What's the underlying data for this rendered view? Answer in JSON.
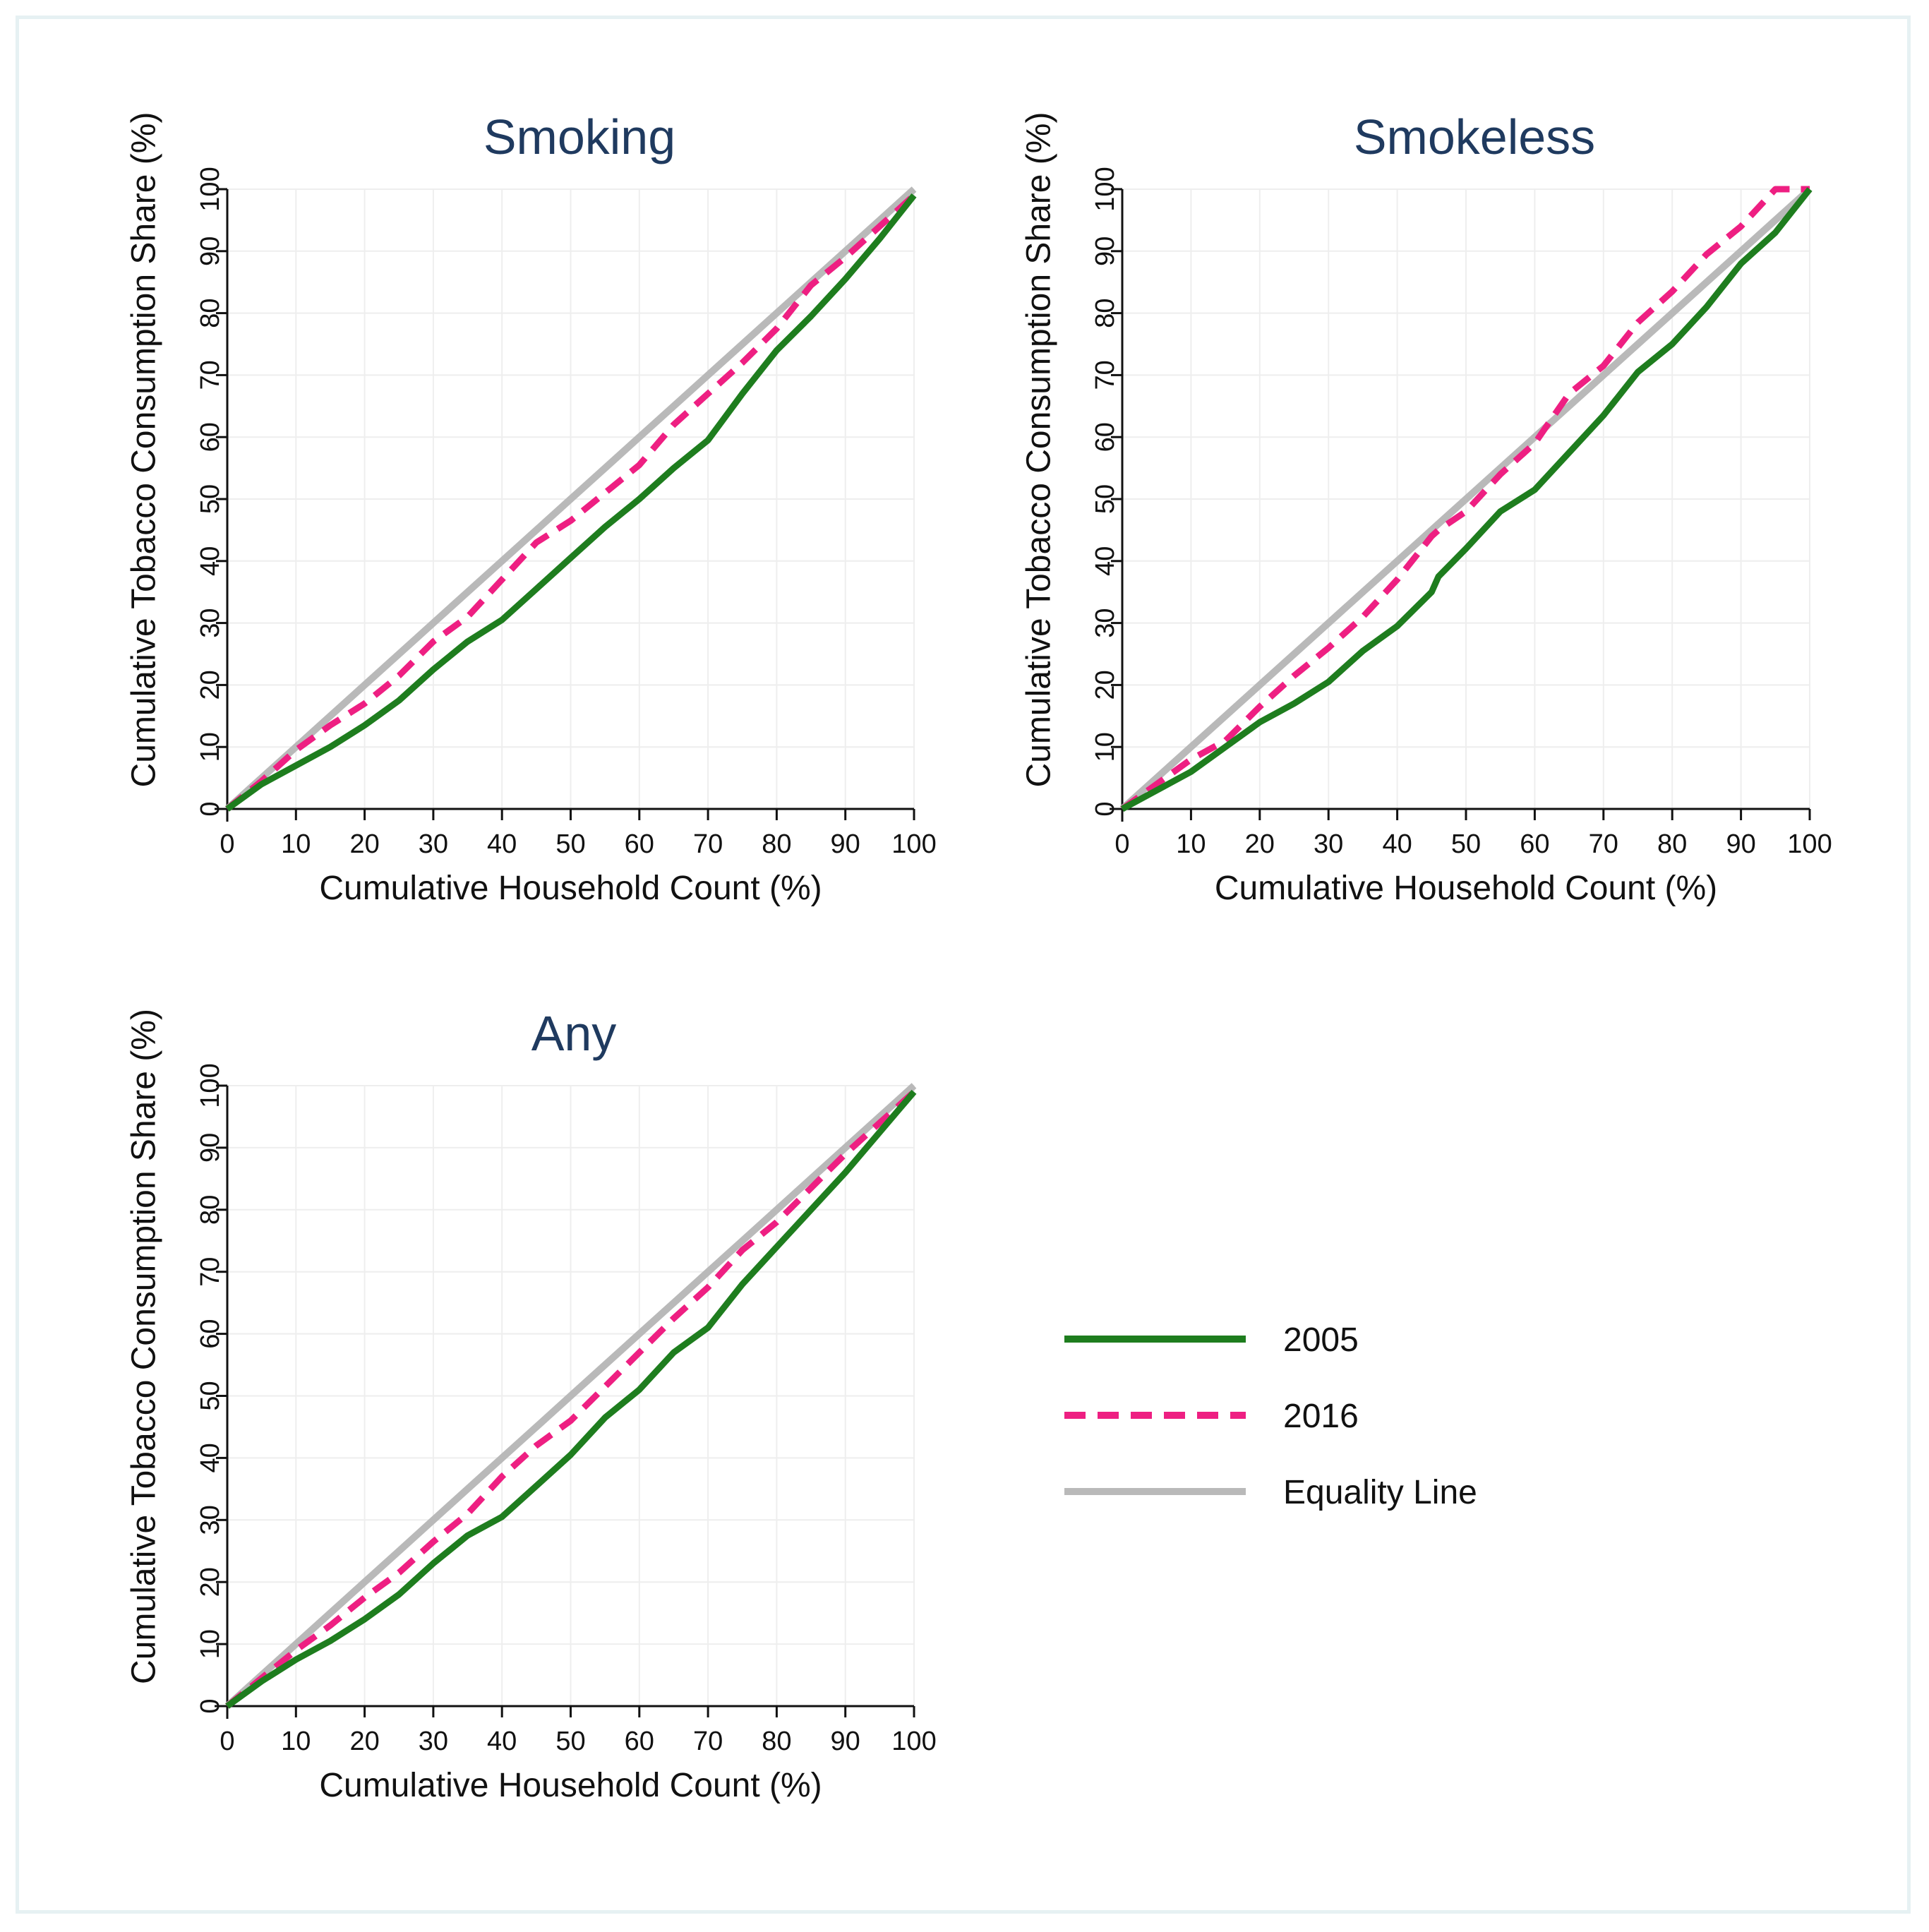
{
  "chart_data": [
    {
      "type": "line",
      "title": "Smoking",
      "xlabel": "Cumulative Household Count (%)",
      "ylabel": "Cumulative Tobacco Consumption Share (%)",
      "xlim": [
        0,
        100
      ],
      "ylim": [
        0,
        100
      ],
      "xticks": [
        0,
        10,
        20,
        30,
        40,
        50,
        60,
        70,
        80,
        90,
        100
      ],
      "yticks": [
        0,
        10,
        20,
        30,
        40,
        50,
        60,
        70,
        80,
        90,
        100
      ],
      "x": [
        0,
        5,
        10,
        15,
        20,
        25,
        30,
        35,
        40,
        45,
        50,
        55,
        60,
        65,
        70,
        75,
        80,
        85,
        90,
        95,
        100
      ],
      "series": [
        {
          "name": "2005",
          "values": [
            0,
            4,
            7,
            10,
            13.5,
            17.5,
            22.5,
            27,
            30.5,
            35.5,
            40.5,
            45.5,
            50,
            55,
            59.5,
            67,
            74,
            79.5,
            85.5,
            92,
            99
          ]
        },
        {
          "name": "2016",
          "values": [
            0,
            4.5,
            9.5,
            13.5,
            17,
            21.5,
            27,
            31,
            37,
            43,
            46.5,
            51,
            55.5,
            62,
            67,
            72,
            77.5,
            84.5,
            89,
            94,
            99
          ]
        },
        {
          "name": "Equality Line",
          "values": [
            0,
            5,
            10,
            15,
            20,
            25,
            30,
            35,
            40,
            45,
            50,
            55,
            60,
            65,
            70,
            75,
            80,
            85,
            90,
            95,
            100
          ]
        }
      ]
    },
    {
      "type": "line",
      "title": "Smokeless",
      "xlabel": "Cumulative Household Count (%)",
      "ylabel": "Cumulative Tobacco Consumption Share (%)",
      "xlim": [
        0,
        100
      ],
      "ylim": [
        0,
        100
      ],
      "xticks": [
        0,
        10,
        20,
        30,
        40,
        50,
        60,
        70,
        80,
        90,
        100
      ],
      "yticks": [
        0,
        10,
        20,
        30,
        40,
        50,
        60,
        70,
        80,
        90,
        100
      ],
      "x": [
        0,
        5,
        10,
        15,
        20,
        25,
        30,
        35,
        40,
        45,
        46,
        50,
        55,
        60,
        65,
        70,
        75,
        80,
        85,
        90,
        95,
        100
      ],
      "series": [
        {
          "name": "2005",
          "values": [
            0,
            3,
            6,
            10,
            14,
            17,
            20.5,
            25.5,
            29.5,
            35,
            37.5,
            42,
            48,
            51.5,
            57.5,
            63.5,
            70.5,
            75,
            81,
            88,
            93,
            100
          ]
        },
        {
          "name": "2016",
          "values": [
            0,
            4,
            8,
            11,
            16.5,
            21.5,
            26,
            31,
            37,
            44,
            45,
            48,
            54,
            59,
            67,
            71.5,
            78.5,
            83.5,
            89.5,
            94,
            100,
            100
          ]
        },
        {
          "name": "Equality Line",
          "values": [
            0,
            5,
            10,
            15,
            20,
            25,
            30,
            35,
            40,
            45,
            46,
            50,
            55,
            60,
            65,
            70,
            75,
            80,
            85,
            90,
            95,
            100
          ]
        }
      ]
    },
    {
      "type": "line",
      "title": "Any",
      "xlabel": "Cumulative Household Count (%)",
      "ylabel": "Cumulative Tobacco Consumption Share (%)",
      "xlim": [
        0,
        100
      ],
      "ylim": [
        0,
        100
      ],
      "xticks": [
        0,
        10,
        20,
        30,
        40,
        50,
        60,
        70,
        80,
        90,
        100
      ],
      "yticks": [
        0,
        10,
        20,
        30,
        40,
        50,
        60,
        70,
        80,
        90,
        100
      ],
      "x": [
        0,
        5,
        10,
        15,
        20,
        25,
        30,
        35,
        40,
        45,
        50,
        55,
        60,
        65,
        70,
        75,
        80,
        85,
        90,
        95,
        100
      ],
      "series": [
        {
          "name": "2005",
          "values": [
            0,
            4,
            7.5,
            10.5,
            14,
            18,
            23,
            27.5,
            30.5,
            35.5,
            40.5,
            46.5,
            51,
            57,
            61,
            68,
            74,
            80,
            86,
            92.5,
            99
          ]
        },
        {
          "name": "2016",
          "values": [
            0,
            4.5,
            9,
            13,
            17.5,
            21.5,
            26.5,
            31,
            37,
            42,
            46,
            51.5,
            57,
            62.5,
            67.5,
            73.5,
            78,
            83.5,
            89,
            94,
            99
          ]
        },
        {
          "name": "Equality Line",
          "values": [
            0,
            5,
            10,
            15,
            20,
            25,
            30,
            35,
            40,
            45,
            50,
            55,
            60,
            65,
            70,
            75,
            80,
            85,
            90,
            95,
            100
          ]
        }
      ]
    }
  ],
  "legend": [
    {
      "label": "2005",
      "color": "#1e7d1e",
      "style": "solid"
    },
    {
      "label": "2016",
      "color": "#ee1f82",
      "style": "dashed"
    },
    {
      "label": "Equality Line",
      "color": "#b9b9b9",
      "style": "solid"
    }
  ],
  "colors": {
    "series_2005": "#1e7d1e",
    "series_2016": "#ee1f82",
    "equality": "#b9b9b9",
    "title": "#1f3a5f",
    "grid": "#eeeeee"
  }
}
